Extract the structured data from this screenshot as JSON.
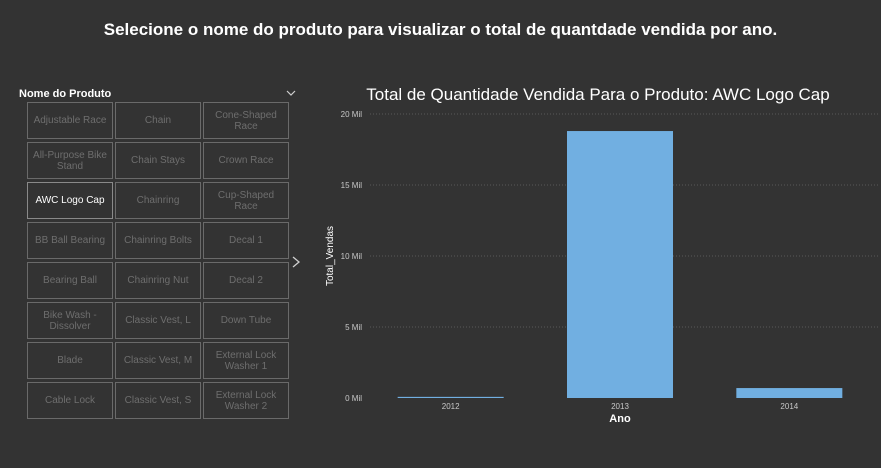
{
  "header": {
    "title": "Selecione o nome do produto para visualizar o total de quantdade vendida por ano."
  },
  "slicer": {
    "title": "Nome do Produto",
    "selected": "AWC Logo Cap",
    "rows": [
      [
        "Adjustable Race",
        "Chain",
        "Cone-Shaped Race"
      ],
      [
        "All-Purpose Bike Stand",
        "Chain Stays",
        "Crown Race"
      ],
      [
        "AWC Logo Cap",
        "Chainring",
        "Cup-Shaped Race"
      ],
      [
        "BB Ball Bearing",
        "Chainring Bolts",
        "Decal 1"
      ],
      [
        "Bearing Ball",
        "Chainring Nut",
        "Decal 2"
      ],
      [
        "Bike Wash - Dissolver",
        "Classic Vest, L",
        "Down Tube"
      ],
      [
        "Blade",
        "Classic Vest, M",
        "External Lock Washer 1"
      ],
      [
        "Cable Lock",
        "Classic Vest, S",
        "External Lock Washer 2"
      ]
    ],
    "icons": {
      "dropdown": "chevron-down-icon",
      "next": "chevron-right-icon"
    }
  },
  "chart_data": {
    "type": "bar",
    "title": "Total de Quantidade Vendida Para o Produto: AWC Logo Cap",
    "xlabel": "Ano",
    "ylabel": "Total_Vendas",
    "categories": [
      "2012",
      "2013",
      "2014"
    ],
    "values": [
      80,
      18800,
      700
    ],
    "ylim": [
      0,
      20000
    ],
    "yticks": [
      0,
      5000,
      10000,
      15000,
      20000
    ],
    "ytick_labels": [
      "0 Mil",
      "5 Mil",
      "10 Mil",
      "15 Mil",
      "20 Mil"
    ],
    "grid": true,
    "bar_color": "#71afe1"
  }
}
